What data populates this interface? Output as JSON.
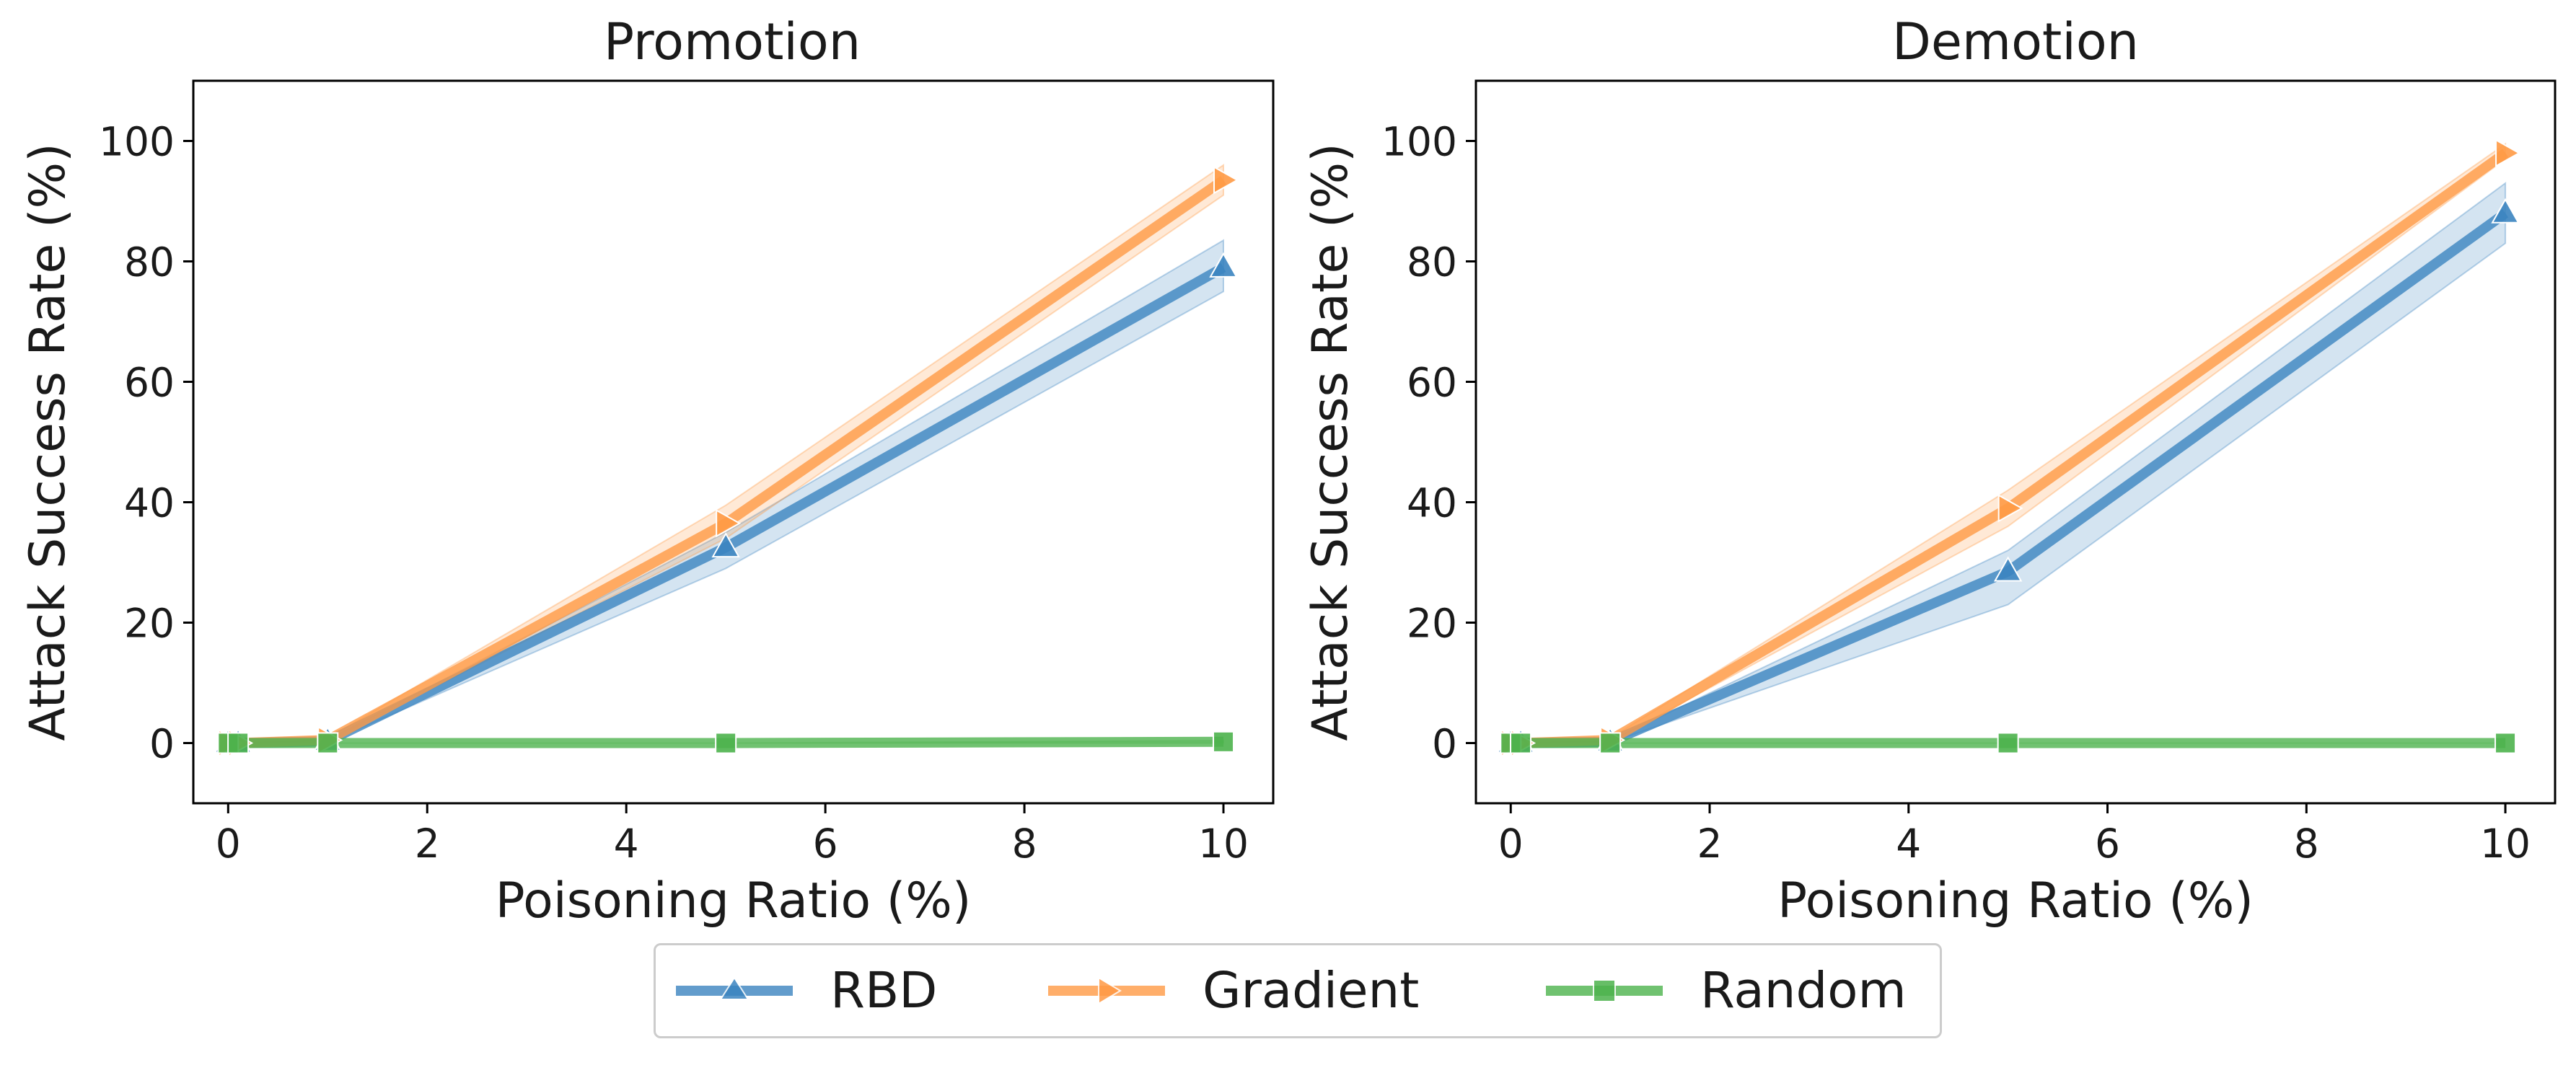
{
  "colors": {
    "rbd": "#3b84c0",
    "gradient": "#ff9a45",
    "random": "#4db34d",
    "frame": "#000000"
  },
  "chart_data": [
    {
      "type": "line",
      "title": "Promotion",
      "xlabel": "Poisoning Ratio (%)",
      "ylabel": "Attack Success Rate (%)",
      "xlim": [
        -0.35,
        10.5
      ],
      "ylim": [
        -10,
        110
      ],
      "xticks": [
        0,
        2,
        4,
        6,
        8,
        10
      ],
      "yticks": [
        0,
        20,
        40,
        60,
        80,
        100
      ],
      "x": [
        0,
        0.1,
        1,
        5,
        10
      ],
      "series": [
        {
          "name": "RBD",
          "marker": "triangle",
          "values": [
            0,
            0,
            0.3,
            32.5,
            79
          ],
          "lower": [
            0,
            0,
            0.1,
            29,
            75
          ],
          "upper": [
            0,
            0,
            0.5,
            35,
            83.5
          ]
        },
        {
          "name": "Gradient",
          "marker": "triangle-right",
          "values": [
            0,
            0,
            0.5,
            36.5,
            93.5
          ],
          "lower": [
            0,
            0,
            0.2,
            34,
            91
          ],
          "upper": [
            0,
            0,
            0.8,
            39.5,
            96
          ]
        },
        {
          "name": "Random",
          "marker": "square",
          "values": [
            0,
            0,
            0,
            0,
            0.2
          ],
          "lower": [
            0,
            0,
            0,
            0,
            0
          ],
          "upper": [
            0,
            0,
            0,
            0,
            0.4
          ]
        }
      ]
    },
    {
      "type": "line",
      "title": "Demotion",
      "xlabel": "Poisoning Ratio (%)",
      "ylabel": "Attack Success Rate (%)",
      "xlim": [
        -0.35,
        10.5
      ],
      "ylim": [
        -10,
        110
      ],
      "xticks": [
        0,
        2,
        4,
        6,
        8,
        10
      ],
      "yticks": [
        0,
        20,
        40,
        60,
        80,
        100
      ],
      "x": [
        0,
        0.1,
        1,
        5,
        10
      ],
      "series": [
        {
          "name": "RBD",
          "marker": "triangle",
          "values": [
            0,
            0,
            0.2,
            28.5,
            88
          ],
          "lower": [
            0,
            0,
            0.1,
            23,
            83
          ],
          "upper": [
            0,
            0,
            0.4,
            32,
            93
          ]
        },
        {
          "name": "Gradient",
          "marker": "triangle-right",
          "values": [
            0,
            0,
            0.5,
            39,
            98
          ],
          "lower": [
            0,
            0,
            0.2,
            36,
            97
          ],
          "upper": [
            0,
            0,
            0.8,
            42,
            99.5
          ]
        },
        {
          "name": "Random",
          "marker": "square",
          "values": [
            0,
            0,
            0,
            0,
            0
          ],
          "lower": [
            0,
            0,
            0,
            0,
            0
          ],
          "upper": [
            0,
            0,
            0,
            0,
            0
          ]
        }
      ]
    }
  ],
  "legend": {
    "position": "bottom-center",
    "items": [
      "RBD",
      "Gradient",
      "Random"
    ]
  }
}
